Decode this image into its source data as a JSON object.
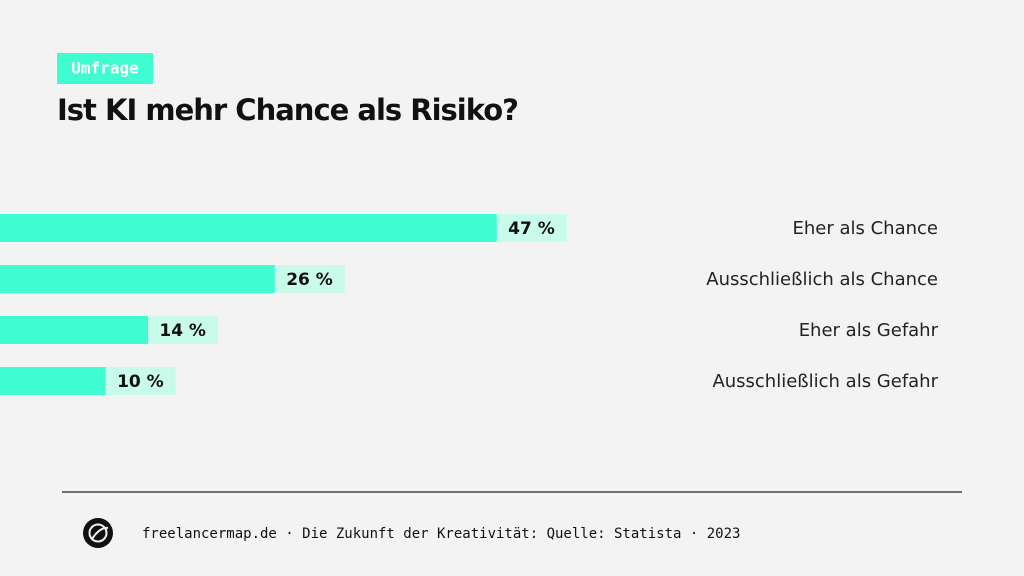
{
  "tag": "Umfrage",
  "chart_data": {
    "type": "bar",
    "orientation": "horizontal",
    "title": "Ist KI mehr Chance als Risiko?",
    "categories": [
      "Eher als Chance",
      "Ausschließlich als Chance",
      "Eher als Gefahr",
      "Ausschließlich als Gefahr"
    ],
    "values": [
      47,
      26,
      14,
      10
    ],
    "value_labels": [
      "47 %",
      "26 %",
      "14 %",
      "10 %"
    ],
    "color": "#3ffdd1"
  },
  "footer": {
    "text": "freelancermap.de · Die Zukunft der Kreativität: Quelle: Statista ·  2023"
  }
}
